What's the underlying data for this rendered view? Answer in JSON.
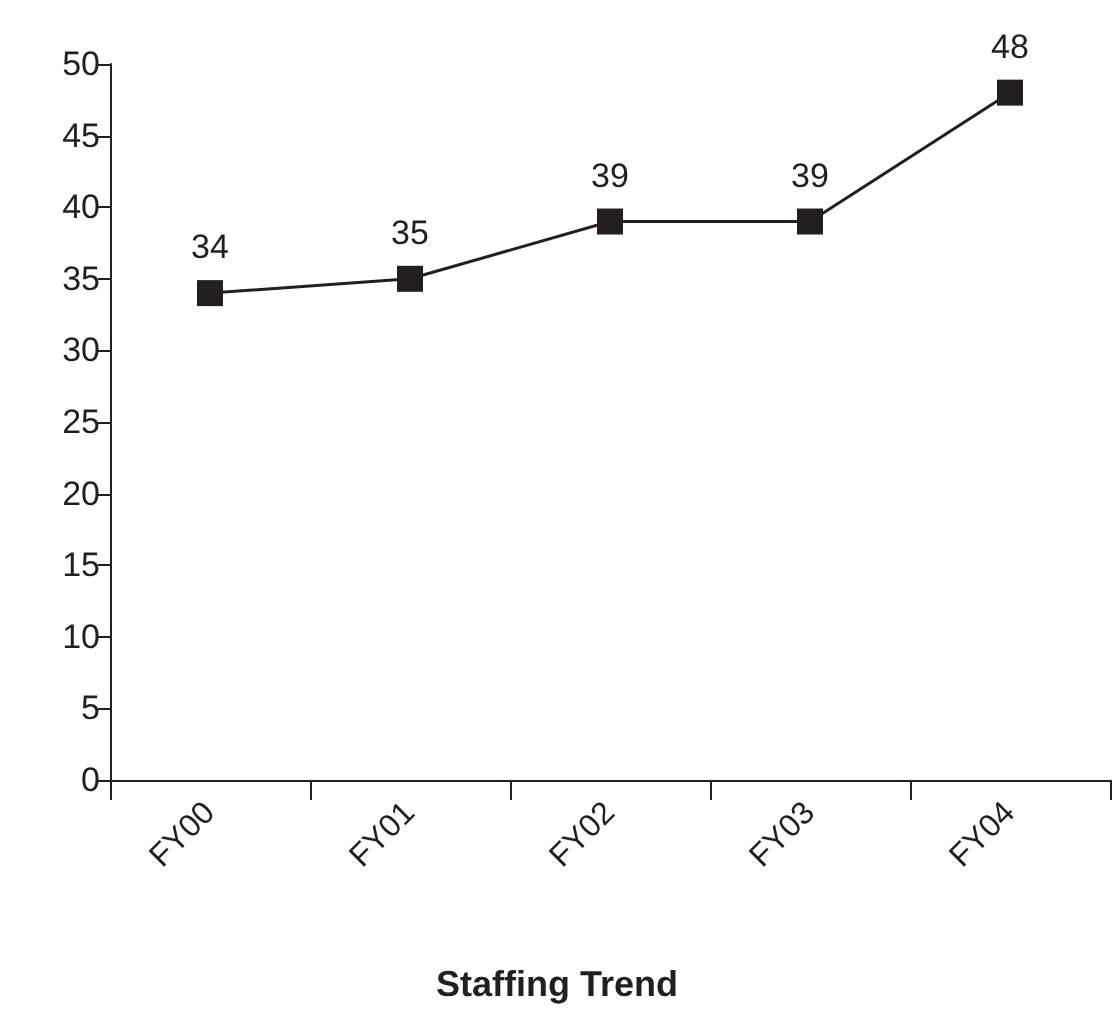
{
  "chart_data": {
    "type": "line",
    "title": "Staffing Trend",
    "categories": [
      "FY00",
      "FY01",
      "FY02",
      "FY03",
      "FY04"
    ],
    "series": [
      {
        "color": "#231f20",
        "values": [
          34,
          35,
          39,
          39,
          48
        ]
      }
    ],
    "ylim": [
      0,
      50
    ],
    "yticks": [
      0,
      5,
      10,
      15,
      20,
      25,
      30,
      35,
      40,
      45,
      50
    ],
    "grid": false,
    "marker": "square",
    "line_style": "solid",
    "data_labels": true
  }
}
